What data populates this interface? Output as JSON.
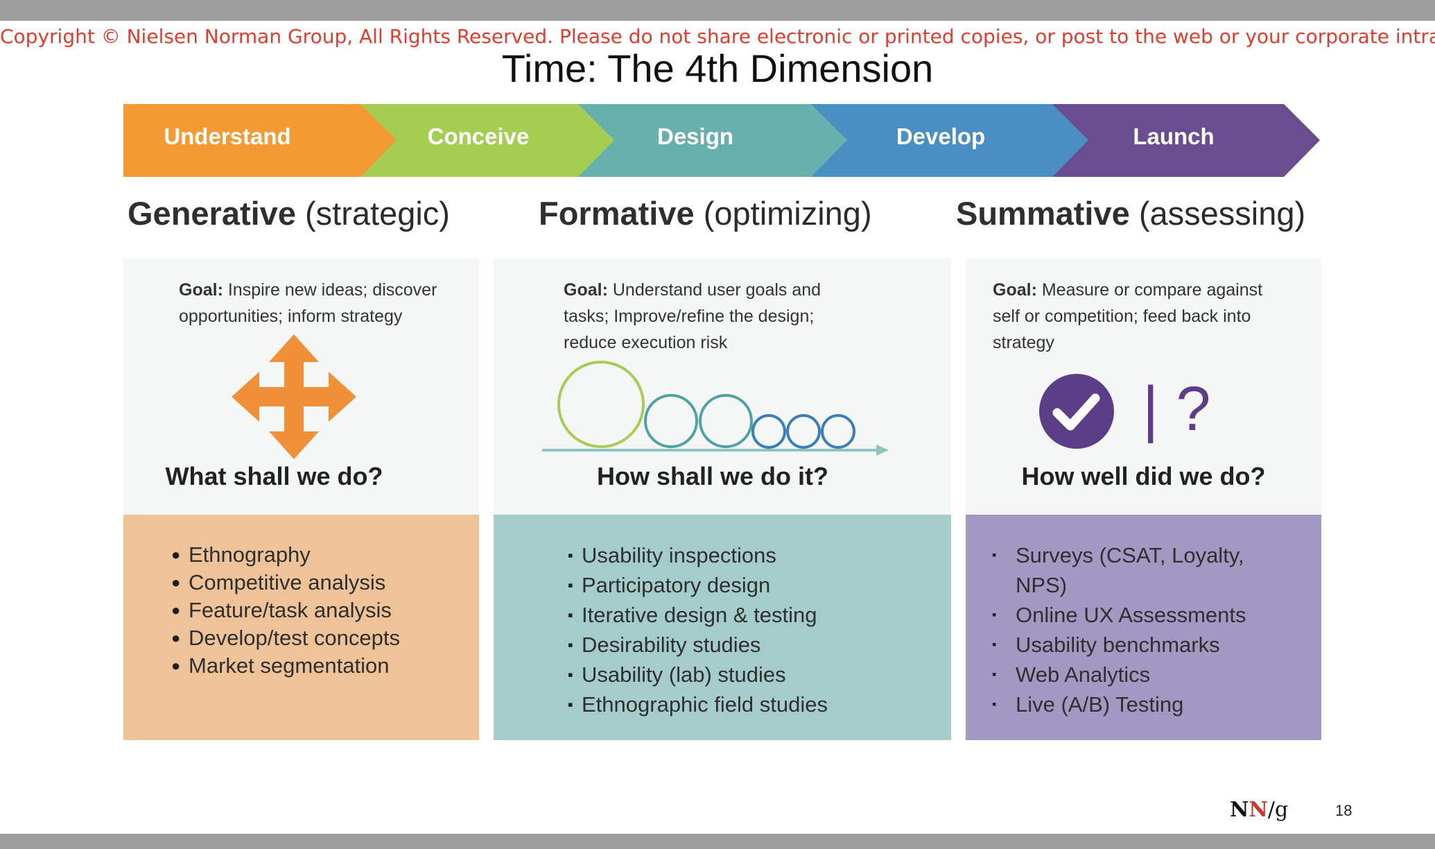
{
  "copyright": "Copyright © Nielsen Norman Group, All Rights Reserved. Please do not share electronic or printed copies, or post to the web or your corporate intranet.",
  "title": "Time: The 4th Dimension",
  "stages": [
    {
      "label": "Understand",
      "color": "#f39a33"
    },
    {
      "label": "Conceive",
      "color": "#a5cd52"
    },
    {
      "label": "Design",
      "color": "#67b0ad"
    },
    {
      "label": "Develop",
      "color": "#4a8fc1"
    },
    {
      "label": "Launch",
      "color": "#6a4d91"
    }
  ],
  "phases": [
    {
      "name": "Generative",
      "qualifier": "(strategic)",
      "goal_label": "Goal:",
      "goal_text": "Inspire new ideas; discover opportunities; inform strategy",
      "question": "What shall we do?",
      "icon": "four-way-arrow-icon",
      "methods": [
        "Ethnography",
        "Competitive analysis",
        "Feature/task analysis",
        "Develop/test concepts",
        "Market segmentation"
      ],
      "list_color": "#edc397"
    },
    {
      "name": "Formative",
      "qualifier": "(optimizing)",
      "goal_label": "Goal:",
      "goal_text": "Understand user goals and tasks; Improve/refine the design; reduce execution risk",
      "question": "How shall we do it?",
      "icon": "shrinking-circles-icon",
      "methods": [
        "Usability inspections",
        "Participatory design",
        "Iterative design & testing",
        "Desirability studies",
        "Usability (lab) studies",
        "Ethnographic field studies"
      ],
      "list_color": "#a3cccb"
    },
    {
      "name": "Summative",
      "qualifier": "(assessing)",
      "goal_label": "Goal:",
      "goal_text": "Measure or compare against self or competition; feed back into strategy",
      "question": "How well did we do?",
      "icon": "checkmark-circle-icon",
      "icon_text": "| ?",
      "methods": [
        "Surveys (CSAT, Loyalty, NPS)",
        "Online UX Assessments",
        "Usability benchmarks",
        "Web Analytics",
        "Live (A/B) Testing"
      ],
      "list_color": "#a398c2"
    }
  ],
  "footer": {
    "logo": [
      "N",
      "N",
      "/g"
    ],
    "page_number": "18"
  }
}
